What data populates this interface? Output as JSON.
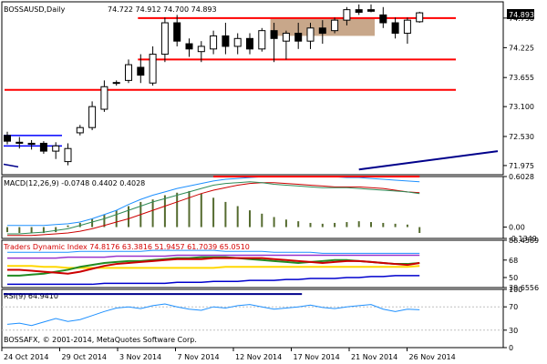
{
  "chart_data": {
    "type": "candlestick",
    "symbol_header": "BOSSAUSD,Daily",
    "ohlc_header": "74.722 74.912 74.700 74.893",
    "last_price_badge": "74.893",
    "copyright": "BOSSAFX, © 2001-2014, MetaQuotes Software Corp.",
    "x_tick_labels": [
      "24 Oct 2014",
      "29 Oct 2014",
      "3 Nov 2014",
      "7 Nov 2014",
      "12 Nov 2014",
      "17 Nov 2014",
      "21 Nov 2014",
      "26 Nov 2014"
    ],
    "price_axis": {
      "ylim": [
        71.8,
        75.1
      ],
      "ticks": [
        "74.790",
        "74.225",
        "73.655",
        "73.100",
        "72.530",
        "71.975"
      ],
      "tick_values": [
        74.79,
        74.225,
        73.655,
        73.1,
        72.53,
        71.975
      ]
    },
    "candles": [
      {
        "o": 72.55,
        "h": 72.62,
        "l": 72.38,
        "c": 72.44
      },
      {
        "o": 72.42,
        "h": 72.52,
        "l": 72.3,
        "c": 72.4
      },
      {
        "o": 72.4,
        "h": 72.46,
        "l": 72.28,
        "c": 72.38
      },
      {
        "o": 72.4,
        "h": 72.44,
        "l": 72.2,
        "c": 72.25
      },
      {
        "o": 72.25,
        "h": 72.42,
        "l": 72.1,
        "c": 72.35
      },
      {
        "o": 72.05,
        "h": 72.4,
        "l": 71.98,
        "c": 72.3
      },
      {
        "o": 72.6,
        "h": 72.75,
        "l": 72.55,
        "c": 72.7
      },
      {
        "o": 72.7,
        "h": 73.2,
        "l": 72.65,
        "c": 73.1
      },
      {
        "o": 73.05,
        "h": 73.6,
        "l": 73.0,
        "c": 73.48
      },
      {
        "o": 73.55,
        "h": 73.6,
        "l": 73.5,
        "c": 73.56
      },
      {
        "o": 73.6,
        "h": 74.0,
        "l": 73.55,
        "c": 73.9
      },
      {
        "o": 73.85,
        "h": 74.1,
        "l": 73.55,
        "c": 73.7
      },
      {
        "o": 73.55,
        "h": 74.25,
        "l": 73.5,
        "c": 74.1
      },
      {
        "o": 74.1,
        "h": 74.8,
        "l": 73.95,
        "c": 74.7
      },
      {
        "o": 74.7,
        "h": 74.85,
        "l": 74.25,
        "c": 74.35
      },
      {
        "o": 74.3,
        "h": 74.4,
        "l": 74.05,
        "c": 74.2
      },
      {
        "o": 74.15,
        "h": 74.35,
        "l": 73.95,
        "c": 74.25
      },
      {
        "o": 74.2,
        "h": 74.55,
        "l": 74.1,
        "c": 74.45
      },
      {
        "o": 74.45,
        "h": 74.7,
        "l": 74.1,
        "c": 74.25
      },
      {
        "o": 74.25,
        "h": 74.5,
        "l": 74.1,
        "c": 74.4
      },
      {
        "o": 74.4,
        "h": 74.5,
        "l": 74.1,
        "c": 74.2
      },
      {
        "o": 74.2,
        "h": 74.6,
        "l": 74.15,
        "c": 74.55
      },
      {
        "o": 74.55,
        "h": 74.7,
        "l": 73.95,
        "c": 74.4
      },
      {
        "o": 74.35,
        "h": 74.55,
        "l": 74.0,
        "c": 74.5
      },
      {
        "o": 74.5,
        "h": 74.7,
        "l": 74.2,
        "c": 74.35
      },
      {
        "o": 74.35,
        "h": 74.7,
        "l": 74.2,
        "c": 74.6
      },
      {
        "o": 74.6,
        "h": 74.75,
        "l": 74.3,
        "c": 74.5
      },
      {
        "o": 74.55,
        "h": 74.8,
        "l": 74.5,
        "c": 74.75
      },
      {
        "o": 74.75,
        "h": 75.0,
        "l": 74.65,
        "c": 74.95
      },
      {
        "o": 74.95,
        "h": 75.05,
        "l": 74.85,
        "c": 74.9
      },
      {
        "o": 74.95,
        "h": 75.05,
        "l": 74.9,
        "c": 74.92
      },
      {
        "o": 74.85,
        "h": 75.0,
        "l": 74.6,
        "c": 74.7
      },
      {
        "o": 74.7,
        "h": 74.8,
        "l": 74.4,
        "c": 74.5
      },
      {
        "o": 74.5,
        "h": 74.8,
        "l": 74.3,
        "c": 74.75
      },
      {
        "o": 74.72,
        "h": 74.91,
        "l": 74.7,
        "c": 74.89
      }
    ],
    "horizontal_levels": [
      {
        "price": 74.79,
        "from": 11,
        "to": 34,
        "color": "#ff0000"
      },
      {
        "price": 74.0,
        "from": 11,
        "to": 34,
        "color": "#ff0000"
      },
      {
        "price": 73.42,
        "from": 0,
        "to": 34,
        "color": "#ff0000"
      }
    ],
    "shaded_zone": {
      "from": 22,
      "to": 30,
      "price_top": 74.79,
      "price_bottom": 74.45,
      "color": "#c8a78a"
    },
    "trend_lines": [
      {
        "x1": 0,
        "p1": 72.55,
        "x2": 5,
        "p2": 72.55,
        "color": "#0000ff"
      },
      {
        "x1": 0,
        "p1": 72.35,
        "x2": 5,
        "p2": 72.35,
        "color": "#0000ff"
      },
      {
        "x1": 0,
        "p1": 72.0,
        "x2": 1,
        "p2": 71.95,
        "color": "#00008b"
      },
      {
        "x1": 29,
        "p1": 71.9,
        "x2": 44,
        "p2": 72.25,
        "color": "#00008b"
      }
    ],
    "macd": {
      "header": "MACD(12,26,9) -0.0748 0.4402 0.4028",
      "ylim": [
        -0.1349,
        0.6028
      ],
      "ticks": [
        "0.6028",
        "0.00",
        "-0.1349"
      ],
      "tick_values": [
        0.6028,
        0.0,
        -0.1349
      ],
      "histogram": [
        -0.06,
        -0.07,
        -0.07,
        -0.07,
        -0.06,
        0.02,
        0.05,
        0.1,
        0.15,
        0.2,
        0.25,
        0.3,
        0.33,
        0.38,
        0.41,
        0.43,
        0.4,
        0.35,
        0.3,
        0.25,
        0.2,
        0.16,
        0.12,
        0.09,
        0.07,
        0.05,
        0.04,
        0.05,
        0.06,
        0.07,
        0.06,
        0.05,
        0.04,
        0.03,
        -0.07
      ],
      "signal_line": [
        -0.08,
        -0.08,
        -0.07,
        -0.06,
        -0.04,
        -0.02,
        0.02,
        0.06,
        0.1,
        0.15,
        0.2,
        0.25,
        0.3,
        0.34,
        0.38,
        0.42,
        0.46,
        0.5,
        0.52,
        0.53,
        0.54,
        0.53,
        0.51,
        0.5,
        0.49,
        0.48,
        0.47,
        0.47,
        0.47,
        0.46,
        0.45,
        0.44,
        0.43,
        0.42,
        0.4
      ],
      "upper_band": [
        0.02,
        0.02,
        0.02,
        0.02,
        0.03,
        0.04,
        0.06,
        0.1,
        0.15,
        0.2,
        0.27,
        0.33,
        0.38,
        0.42,
        0.46,
        0.49,
        0.52,
        0.55,
        0.57,
        0.58,
        0.59,
        0.6,
        0.6,
        0.6,
        0.6,
        0.6,
        0.6,
        0.6,
        0.59,
        0.59,
        0.58,
        0.57,
        0.56,
        0.55,
        0.54
      ],
      "lower_band": [
        -0.1,
        -0.1,
        -0.1,
        -0.09,
        -0.08,
        -0.07,
        -0.05,
        -0.02,
        0.02,
        0.06,
        0.1,
        0.15,
        0.2,
        0.25,
        0.3,
        0.35,
        0.4,
        0.44,
        0.47,
        0.5,
        0.52,
        0.53,
        0.53,
        0.52,
        0.51,
        0.5,
        0.49,
        0.48,
        0.48,
        0.48,
        0.47,
        0.46,
        0.44,
        0.42,
        0.41
      ],
      "peak_marker": {
        "from": 17,
        "to": 34,
        "value": 0.6028,
        "color": "#ff0000"
      }
    },
    "tdi": {
      "header": "Traders Dynamic Index 74.8176 63.3816 51.9457 61.7039 65.0510",
      "ylim": [
        39.6556,
        88.4589
      ],
      "ticks": [
        "88.4589",
        "68",
        "50",
        "39.6556"
      ],
      "tick_values": [
        88.4589,
        68,
        50,
        39.6556
      ],
      "upper_band": [
        76,
        76,
        76,
        76,
        76,
        76,
        77,
        77,
        77,
        77,
        77,
        77,
        78,
        78,
        78,
        78,
        78,
        78,
        77,
        77,
        77,
        77,
        76,
        76,
        76,
        76,
        75,
        75,
        75,
        75,
        75,
        75,
        75,
        75,
        75
      ],
      "lower_band": [
        43,
        43,
        43,
        43,
        43,
        43,
        43,
        43,
        44,
        44,
        44,
        44,
        44,
        44,
        45,
        45,
        45,
        46,
        46,
        46,
        47,
        47,
        47,
        48,
        48,
        49,
        49,
        49,
        50,
        50,
        51,
        51,
        52,
        52,
        52
      ],
      "red_line": [
        58,
        58,
        57,
        56,
        55,
        54,
        56,
        59,
        62,
        64,
        65,
        66,
        67,
        68,
        69,
        69,
        69,
        70,
        70,
        70,
        70,
        70,
        69,
        68,
        67,
        66,
        65,
        66,
        67,
        67,
        66,
        65,
        64,
        63,
        65
      ],
      "green_line": [
        52,
        52,
        53,
        54,
        56,
        58,
        61,
        63,
        65,
        66,
        67,
        67,
        68,
        69,
        70,
        70,
        71,
        71,
        71,
        70,
        69,
        68,
        67,
        66,
        65,
        66,
        67,
        68,
        68,
        67,
        66,
        65,
        64,
        64,
        65
      ],
      "yellow_line": [
        62,
        62,
        62,
        61,
        61,
        60,
        60,
        60,
        60,
        60,
        60,
        60,
        60,
        60,
        60,
        60,
        60,
        60,
        61,
        61,
        61,
        61,
        61,
        61,
        61,
        61,
        61,
        61,
        61,
        61,
        61,
        61,
        61,
        61,
        62
      ],
      "violet_line": [
        70,
        70,
        70,
        70,
        70,
        71,
        71,
        71,
        71,
        72,
        72,
        72,
        72,
        72,
        73,
        73,
        73,
        73,
        73,
        73,
        73,
        73,
        73,
        73,
        73,
        73,
        73,
        73,
        73,
        73,
        73,
        73,
        73,
        73,
        73
      ]
    },
    "rsi": {
      "header": "RSI(9) 64.9410",
      "ylim": [
        0,
        100
      ],
      "ticks": [
        "100",
        "70",
        "30",
        "0"
      ],
      "tick_values": [
        100,
        70,
        30,
        0
      ],
      "values": [
        40,
        42,
        38,
        44,
        50,
        45,
        48,
        55,
        62,
        68,
        70,
        67,
        72,
        75,
        70,
        66,
        64,
        70,
        68,
        72,
        74,
        70,
        66,
        68,
        70,
        73,
        69,
        67,
        70,
        72,
        74,
        66,
        62,
        66,
        65
      ],
      "top_line": {
        "from": 0,
        "to": 24,
        "value": 92,
        "color": "#00008b"
      }
    }
  }
}
